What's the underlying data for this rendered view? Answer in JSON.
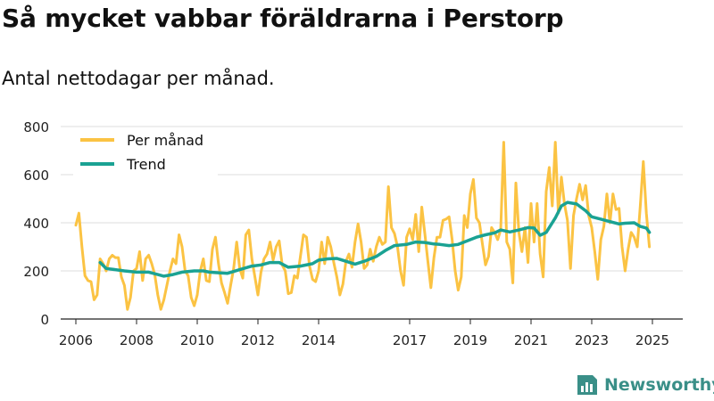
{
  "title": "Så mycket vabbar föräldrarna i Perstorp",
  "subtitle": "Antal nettodagar per månad.",
  "brand": {
    "name": "Newsworthy",
    "color": "#3a8f88"
  },
  "chart_data": {
    "type": "line",
    "ylim": [
      0,
      800
    ],
    "yticks": [
      0,
      200,
      400,
      600,
      800
    ],
    "xlim": [
      2005.5,
      2026.0
    ],
    "xticks": [
      2006,
      2008,
      2010,
      2012,
      2014,
      2017,
      2019,
      2021,
      2023,
      2025
    ],
    "grid": true,
    "legend_position": "top-left",
    "series": [
      {
        "name": "Per månad",
        "color": "#fbc343",
        "points": [
          [
            2006.0,
            390
          ],
          [
            2006.1,
            440
          ],
          [
            2006.2,
            300
          ],
          [
            2006.3,
            180
          ],
          [
            2006.4,
            160
          ],
          [
            2006.5,
            155
          ],
          [
            2006.6,
            80
          ],
          [
            2006.7,
            100
          ],
          [
            2006.8,
            250
          ],
          [
            2006.9,
            230
          ],
          [
            2007.0,
            200
          ],
          [
            2007.1,
            250
          ],
          [
            2007.2,
            265
          ],
          [
            2007.3,
            255
          ],
          [
            2007.4,
            255
          ],
          [
            2007.5,
            175
          ],
          [
            2007.6,
            140
          ],
          [
            2007.7,
            40
          ],
          [
            2007.8,
            90
          ],
          [
            2007.9,
            200
          ],
          [
            2008.0,
            210
          ],
          [
            2008.1,
            280
          ],
          [
            2008.2,
            160
          ],
          [
            2008.3,
            250
          ],
          [
            2008.4,
            265
          ],
          [
            2008.5,
            230
          ],
          [
            2008.6,
            185
          ],
          [
            2008.7,
            100
          ],
          [
            2008.8,
            40
          ],
          [
            2008.9,
            80
          ],
          [
            2009.0,
            140
          ],
          [
            2009.1,
            200
          ],
          [
            2009.2,
            250
          ],
          [
            2009.3,
            230
          ],
          [
            2009.4,
            350
          ],
          [
            2009.5,
            300
          ],
          [
            2009.6,
            200
          ],
          [
            2009.7,
            180
          ],
          [
            2009.8,
            90
          ],
          [
            2009.9,
            55
          ],
          [
            2010.0,
            100
          ],
          [
            2010.1,
            200
          ],
          [
            2010.2,
            250
          ],
          [
            2010.3,
            160
          ],
          [
            2010.4,
            155
          ],
          [
            2010.5,
            290
          ],
          [
            2010.6,
            340
          ],
          [
            2010.7,
            230
          ],
          [
            2010.8,
            150
          ],
          [
            2010.9,
            110
          ],
          [
            2011.0,
            65
          ],
          [
            2011.1,
            140
          ],
          [
            2011.2,
            210
          ],
          [
            2011.3,
            320
          ],
          [
            2011.4,
            210
          ],
          [
            2011.5,
            170
          ],
          [
            2011.6,
            350
          ],
          [
            2011.7,
            370
          ],
          [
            2011.8,
            250
          ],
          [
            2011.9,
            175
          ],
          [
            2012.0,
            100
          ],
          [
            2012.1,
            195
          ],
          [
            2012.2,
            250
          ],
          [
            2012.3,
            270
          ],
          [
            2012.4,
            320
          ],
          [
            2012.5,
            245
          ],
          [
            2012.6,
            300
          ],
          [
            2012.7,
            325
          ],
          [
            2012.8,
            225
          ],
          [
            2012.9,
            200
          ],
          [
            2013.0,
            105
          ],
          [
            2013.1,
            110
          ],
          [
            2013.2,
            180
          ],
          [
            2013.3,
            170
          ],
          [
            2013.4,
            260
          ],
          [
            2013.5,
            350
          ],
          [
            2013.6,
            340
          ],
          [
            2013.7,
            220
          ],
          [
            2013.8,
            165
          ],
          [
            2013.9,
            155
          ],
          [
            2014.0,
            200
          ],
          [
            2014.1,
            320
          ],
          [
            2014.2,
            230
          ],
          [
            2014.3,
            340
          ],
          [
            2014.4,
            300
          ],
          [
            2014.5,
            235
          ],
          [
            2014.6,
            175
          ],
          [
            2014.7,
            100
          ],
          [
            2014.8,
            145
          ],
          [
            2014.9,
            240
          ],
          [
            2015.0,
            270
          ],
          [
            2015.1,
            215
          ],
          [
            2015.2,
            320
          ],
          [
            2015.3,
            395
          ],
          [
            2015.4,
            320
          ],
          [
            2015.5,
            210
          ],
          [
            2015.6,
            225
          ],
          [
            2015.7,
            290
          ],
          [
            2015.8,
            240
          ],
          [
            2015.9,
            300
          ],
          [
            2016.0,
            340
          ],
          [
            2016.1,
            310
          ],
          [
            2016.2,
            320
          ],
          [
            2016.3,
            550
          ],
          [
            2016.4,
            380
          ],
          [
            2016.5,
            355
          ],
          [
            2016.6,
            300
          ],
          [
            2016.7,
            200
          ],
          [
            2016.8,
            140
          ],
          [
            2016.9,
            340
          ],
          [
            2017.0,
            375
          ],
          [
            2017.1,
            330
          ],
          [
            2017.2,
            435
          ],
          [
            2017.3,
            280
          ],
          [
            2017.4,
            465
          ],
          [
            2017.5,
            355
          ],
          [
            2017.6,
            240
          ],
          [
            2017.7,
            130
          ],
          [
            2017.8,
            255
          ],
          [
            2017.9,
            340
          ],
          [
            2018.0,
            340
          ],
          [
            2018.1,
            410
          ],
          [
            2018.2,
            415
          ],
          [
            2018.3,
            425
          ],
          [
            2018.4,
            330
          ],
          [
            2018.5,
            200
          ],
          [
            2018.6,
            120
          ],
          [
            2018.7,
            175
          ],
          [
            2018.8,
            430
          ],
          [
            2018.9,
            380
          ],
          [
            2019.0,
            520
          ],
          [
            2019.1,
            580
          ],
          [
            2019.2,
            420
          ],
          [
            2019.3,
            400
          ],
          [
            2019.4,
            310
          ],
          [
            2019.5,
            225
          ],
          [
            2019.6,
            260
          ],
          [
            2019.7,
            380
          ],
          [
            2019.8,
            360
          ],
          [
            2019.9,
            330
          ],
          [
            2020.0,
            370
          ],
          [
            2020.1,
            735
          ],
          [
            2020.2,
            320
          ],
          [
            2020.3,
            290
          ],
          [
            2020.4,
            150
          ],
          [
            2020.5,
            565
          ],
          [
            2020.6,
            360
          ],
          [
            2020.7,
            280
          ],
          [
            2020.8,
            380
          ],
          [
            2020.9,
            235
          ],
          [
            2021.0,
            480
          ],
          [
            2021.1,
            320
          ],
          [
            2021.2,
            480
          ],
          [
            2021.3,
            270
          ],
          [
            2021.4,
            175
          ],
          [
            2021.5,
            530
          ],
          [
            2021.6,
            630
          ],
          [
            2021.7,
            470
          ],
          [
            2021.8,
            735
          ],
          [
            2021.9,
            440
          ],
          [
            2022.0,
            590
          ],
          [
            2022.1,
            480
          ],
          [
            2022.2,
            410
          ],
          [
            2022.3,
            210
          ],
          [
            2022.4,
            430
          ],
          [
            2022.5,
            500
          ],
          [
            2022.6,
            560
          ],
          [
            2022.7,
            495
          ],
          [
            2022.8,
            555
          ],
          [
            2022.9,
            430
          ],
          [
            2023.0,
            380
          ],
          [
            2023.1,
            280
          ],
          [
            2023.2,
            165
          ],
          [
            2023.3,
            330
          ],
          [
            2023.4,
            385
          ],
          [
            2023.5,
            520
          ],
          [
            2023.6,
            400
          ],
          [
            2023.7,
            520
          ],
          [
            2023.8,
            455
          ],
          [
            2023.9,
            460
          ],
          [
            2024.0,
            300
          ],
          [
            2024.1,
            200
          ],
          [
            2024.2,
            290
          ],
          [
            2024.3,
            360
          ],
          [
            2024.4,
            340
          ],
          [
            2024.5,
            300
          ],
          [
            2024.6,
            470
          ],
          [
            2024.7,
            655
          ],
          [
            2024.8,
            440
          ],
          [
            2024.9,
            300
          ]
        ]
      },
      {
        "name": "Trend",
        "color": "#1aa293",
        "points": [
          [
            2006.8,
            235
          ],
          [
            2007.0,
            210
          ],
          [
            2007.3,
            205
          ],
          [
            2007.6,
            200
          ],
          [
            2008.0,
            195
          ],
          [
            2008.4,
            195
          ],
          [
            2008.7,
            185
          ],
          [
            2008.9,
            178
          ],
          [
            2009.2,
            185
          ],
          [
            2009.5,
            195
          ],
          [
            2009.9,
            200
          ],
          [
            2010.2,
            200
          ],
          [
            2010.4,
            195
          ],
          [
            2010.6,
            193
          ],
          [
            2011.0,
            190
          ],
          [
            2011.4,
            205
          ],
          [
            2011.8,
            220
          ],
          [
            2012.1,
            225
          ],
          [
            2012.4,
            235
          ],
          [
            2012.7,
            235
          ],
          [
            2013.0,
            215
          ],
          [
            2013.4,
            220
          ],
          [
            2013.8,
            230
          ],
          [
            2014.0,
            245
          ],
          [
            2014.3,
            250
          ],
          [
            2014.6,
            252
          ],
          [
            2014.9,
            240
          ],
          [
            2015.2,
            228
          ],
          [
            2015.5,
            240
          ],
          [
            2015.9,
            260
          ],
          [
            2016.2,
            285
          ],
          [
            2016.5,
            305
          ],
          [
            2016.9,
            310
          ],
          [
            2017.2,
            320
          ],
          [
            2017.5,
            318
          ],
          [
            2017.8,
            312
          ],
          [
            2018.0,
            310
          ],
          [
            2018.3,
            305
          ],
          [
            2018.6,
            310
          ],
          [
            2018.9,
            325
          ],
          [
            2019.2,
            340
          ],
          [
            2019.5,
            350
          ],
          [
            2019.8,
            358
          ],
          [
            2020.0,
            370
          ],
          [
            2020.3,
            362
          ],
          [
            2020.6,
            370
          ],
          [
            2020.9,
            380
          ],
          [
            2021.1,
            378
          ],
          [
            2021.3,
            348
          ],
          [
            2021.5,
            360
          ],
          [
            2021.8,
            420
          ],
          [
            2022.0,
            470
          ],
          [
            2022.2,
            485
          ],
          [
            2022.5,
            478
          ],
          [
            2022.8,
            450
          ],
          [
            2023.0,
            425
          ],
          [
            2023.3,
            415
          ],
          [
            2023.6,
            405
          ],
          [
            2023.9,
            395
          ],
          [
            2024.1,
            398
          ],
          [
            2024.4,
            400
          ],
          [
            2024.6,
            385
          ],
          [
            2024.8,
            378
          ],
          [
            2024.9,
            360
          ]
        ]
      }
    ]
  }
}
